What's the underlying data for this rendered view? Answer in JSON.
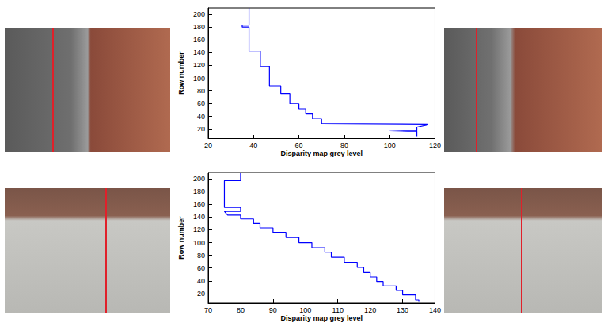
{
  "chart_data": [
    {
      "type": "line",
      "xlabel": "Disparity map grey level",
      "ylabel": "Row number",
      "xlim": [
        20,
        120
      ],
      "xticks": [
        20,
        40,
        60,
        80,
        100,
        120
      ],
      "ylim": [
        5,
        210
      ],
      "yticks": [
        20,
        40,
        60,
        80,
        100,
        120,
        140,
        160,
        180,
        200
      ],
      "grid": false,
      "color": "#0000ff",
      "x": [
        38,
        38,
        35,
        35,
        38,
        38,
        43,
        43,
        47,
        47,
        52,
        52,
        56,
        56,
        60,
        60,
        63,
        63,
        66,
        66,
        70,
        70,
        117,
        112,
        112,
        100,
        108,
        112,
        112
      ],
      "values": [
        210,
        183,
        183,
        180,
        180,
        142,
        142,
        118,
        118,
        87,
        87,
        75,
        75,
        60,
        60,
        51,
        51,
        44,
        44,
        36,
        36,
        28,
        27,
        23,
        18,
        17,
        16,
        16,
        8
      ]
    },
    {
      "type": "line",
      "xlabel": "Disparity map grey level",
      "ylabel": "Row number",
      "xlim": [
        70,
        140
      ],
      "xticks": [
        70,
        80,
        90,
        100,
        110,
        120,
        130,
        140
      ],
      "ylim": [
        5,
        210
      ],
      "yticks": [
        20,
        40,
        60,
        80,
        100,
        120,
        140,
        160,
        180,
        200
      ],
      "grid": false,
      "color": "#0000ff",
      "x": [
        80,
        80,
        75,
        75,
        80,
        80,
        75,
        76,
        80,
        80,
        84,
        84,
        86,
        86,
        90,
        90,
        94,
        94,
        98,
        98,
        102,
        102,
        106,
        106,
        108,
        108,
        112,
        112,
        116,
        116,
        118,
        118,
        120,
        120,
        122,
        122,
        124,
        124,
        128,
        128,
        130,
        130,
        134,
        134,
        135,
        135
      ],
      "values": [
        210,
        197,
        197,
        155,
        155,
        149,
        149,
        143,
        143,
        137,
        137,
        130,
        130,
        123,
        123,
        116,
        116,
        108,
        108,
        100,
        100,
        92,
        92,
        85,
        85,
        77,
        77,
        69,
        69,
        61,
        61,
        53,
        53,
        46,
        46,
        39,
        39,
        32,
        32,
        25,
        25,
        18,
        18,
        10,
        10,
        8
      ]
    }
  ]
}
